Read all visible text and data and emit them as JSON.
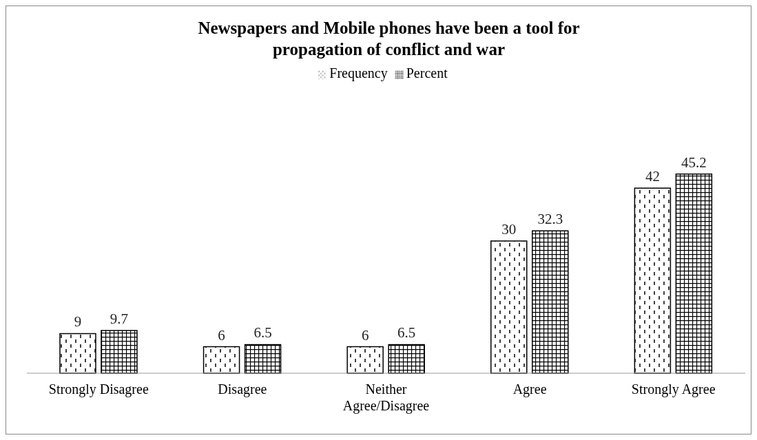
{
  "chart_data": {
    "type": "bar",
    "title": "Newspapers and Mobile phones have been a tool for propagation of conflict and war",
    "categories": [
      "Strongly Disagree",
      "Disagree",
      "Neither Agree/Disagree",
      "Agree",
      "Strongly Agree"
    ],
    "series": [
      {
        "name": "Frequency",
        "color": "#000000",
        "values": [
          9,
          6,
          6,
          30,
          42
        ]
      },
      {
        "name": "Percent",
        "color": "#000000",
        "values": [
          9.7,
          6.5,
          6.5,
          32.3,
          45.2
        ]
      }
    ],
    "data_labels": true,
    "legend": "top",
    "grid": false
  }
}
